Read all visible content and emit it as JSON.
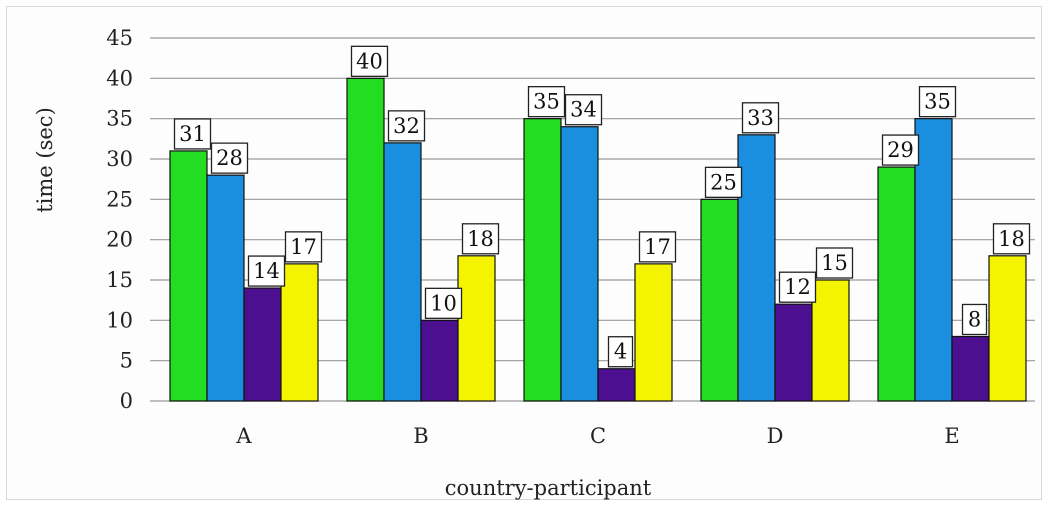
{
  "chart_data": {
    "type": "bar",
    "xlabel": "country-participant",
    "ylabel": "time (sec)",
    "ylim": [
      0,
      45
    ],
    "yticks": [
      0,
      5,
      10,
      15,
      20,
      25,
      30,
      35,
      40,
      45
    ],
    "grid": true,
    "categories": [
      "A",
      "B",
      "C",
      "D",
      "E"
    ],
    "series": [
      {
        "color": "#22dd22",
        "values": [
          31,
          40,
          35,
          25,
          29
        ]
      },
      {
        "color": "#1a8fe0",
        "values": [
          28,
          32,
          34,
          33,
          35
        ]
      },
      {
        "color": "#4b0f8f",
        "values": [
          14,
          10,
          4,
          12,
          8
        ]
      },
      {
        "color": "#f4f400",
        "values": [
          17,
          18,
          17,
          15,
          18
        ]
      }
    ],
    "data_labels": true
  }
}
